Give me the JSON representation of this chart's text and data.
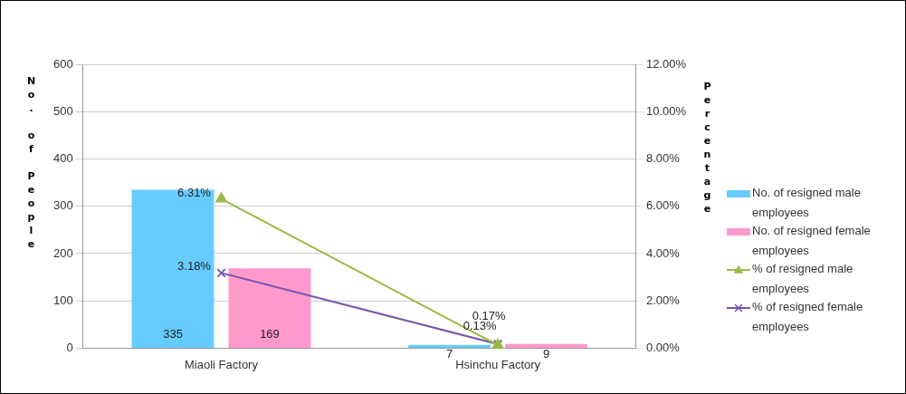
{
  "chart_data": {
    "type": "bar",
    "ylabel": "No. of People",
    "y2label": "Percentage",
    "categories": [
      "Miaoli Factory",
      "Hsinchu Factory"
    ],
    "series": [
      {
        "name": "No. of resigned male employees",
        "color": "#66ccff",
        "values": [
          335,
          7
        ],
        "value_labels": [
          "335",
          "7"
        ]
      },
      {
        "name": "No. of resigned female employees",
        "color": "#ff99cc",
        "values": [
          169,
          9
        ],
        "value_labels": [
          "169",
          "9"
        ]
      },
      {
        "name": "% of resigned male employees",
        "type": "line",
        "axis": "y2",
        "marker": "triangle",
        "color": "#99bb44",
        "values": [
          6.31,
          0.13
        ],
        "value_labels": [
          "6.31%",
          "0.13%"
        ]
      },
      {
        "name": "% of resigned female employees",
        "type": "line",
        "axis": "y2",
        "marker": "cross",
        "color": "#7755aa",
        "values": [
          3.18,
          0.17
        ],
        "value_labels": [
          "3.18%",
          "0.17%"
        ]
      }
    ],
    "ylim": [
      0,
      600
    ],
    "yticks": [
      0,
      100,
      200,
      300,
      400,
      500,
      600
    ],
    "y2lim": [
      0,
      12
    ],
    "y2ticks": [
      {
        "value": 0,
        "label": "0.00%"
      },
      {
        "value": 2,
        "label": "2.00%"
      },
      {
        "value": 4,
        "label": "4.00%"
      },
      {
        "value": 6,
        "label": "6.00%"
      },
      {
        "value": 8,
        "label": "8.00%"
      },
      {
        "value": 10,
        "label": "10.00%"
      },
      {
        "value": 12,
        "label": "12.00%"
      }
    ],
    "grid": "y",
    "legend": "right"
  }
}
